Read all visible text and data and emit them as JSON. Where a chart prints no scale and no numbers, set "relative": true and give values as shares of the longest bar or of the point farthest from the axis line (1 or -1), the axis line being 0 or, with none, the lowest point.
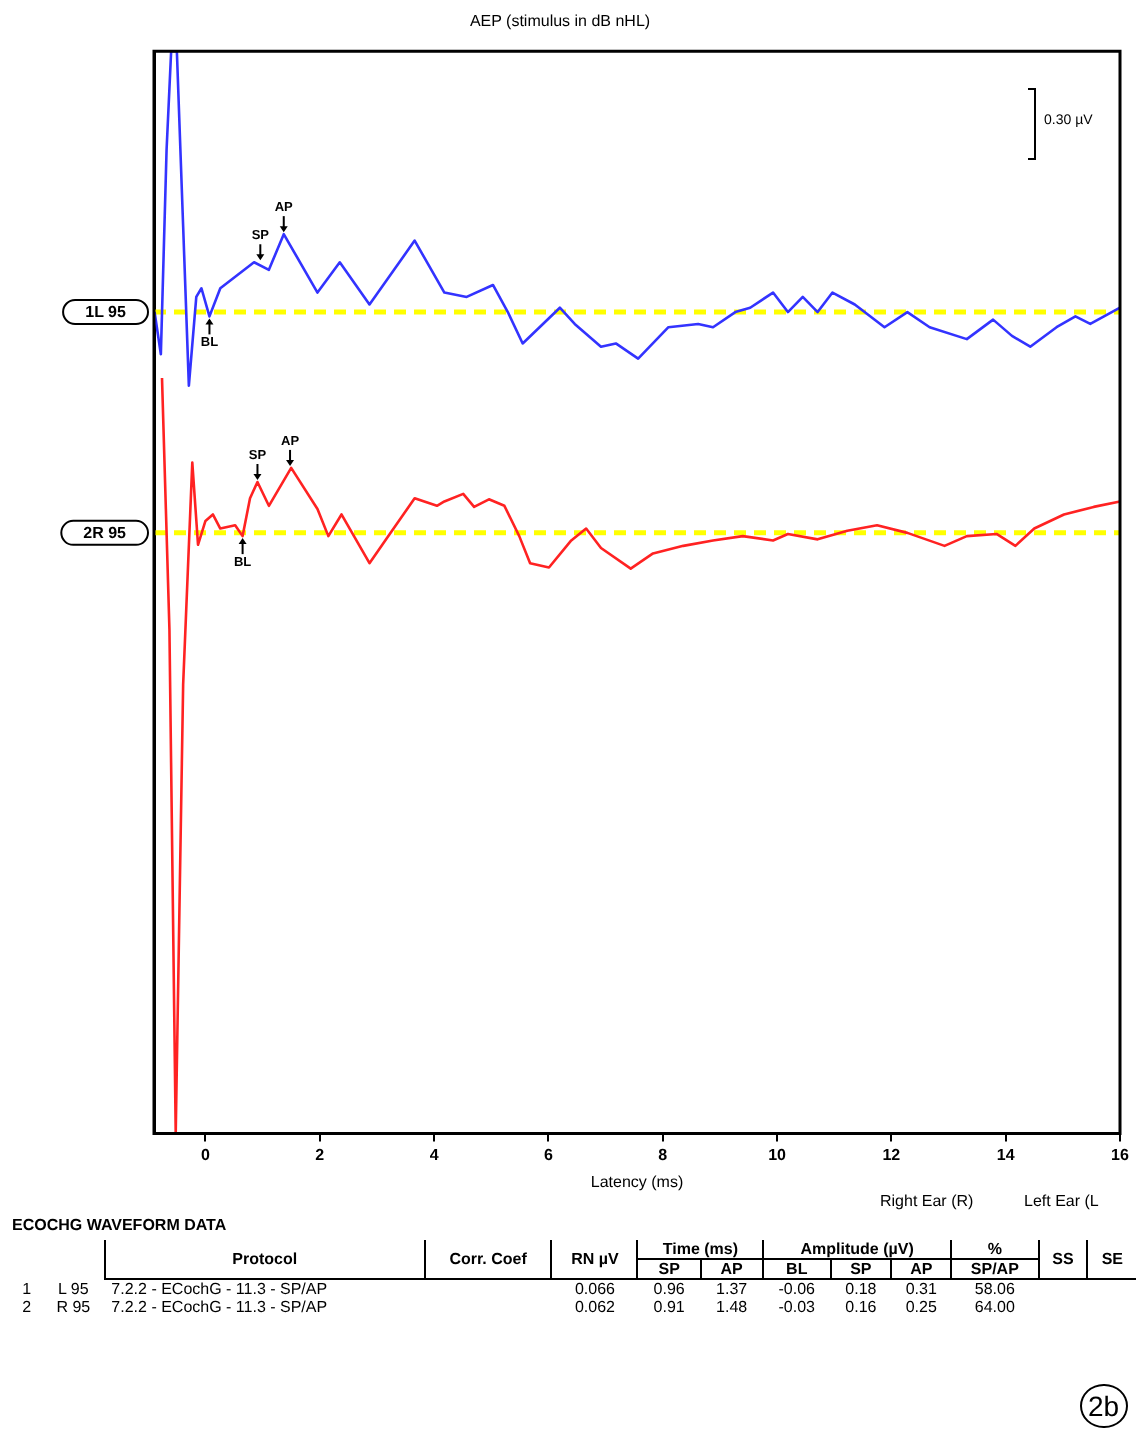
{
  "chart_data": {
    "type": "line",
    "title": "AEP (stimulus in dB nHL)",
    "xlabel": "Latency (ms)",
    "relative": true,
    "xlim": [
      -0.9,
      16
    ],
    "xticks": [
      0,
      2,
      4,
      6,
      8,
      10,
      12,
      14,
      16
    ],
    "grid": false,
    "legend": false,
    "marker": "none",
    "line_style": "solid",
    "series": [
      {
        "color": "#3333ff",
        "x": [
          -0.89,
          -0.78,
          -0.68,
          -0.6,
          -0.5,
          -0.39,
          -0.29,
          -0.16,
          -0.07,
          0.07,
          0.26,
          0.85,
          1.11,
          1.37,
          1.96,
          2.35,
          2.87,
          3.66,
          4.18,
          4.57,
          5.03,
          5.29,
          5.55,
          6.2,
          6.46,
          6.92,
          7.18,
          7.57,
          8.1,
          8.62,
          8.88,
          9.27,
          9.53,
          9.93,
          10.19,
          10.45,
          10.71,
          10.97,
          11.36,
          11.88,
          12.28,
          12.67,
          13.32,
          13.78,
          14.11,
          14.43,
          14.89,
          15.22,
          15.48,
          16.0
        ],
        "values": [
          0.759,
          0.72,
          0.909,
          1.0,
          1.0,
          0.838,
          0.691,
          0.773,
          0.781,
          0.755,
          0.781,
          0.805,
          0.798,
          0.831,
          0.777,
          0.805,
          0.766,
          0.825,
          0.777,
          0.773,
          0.784,
          0.759,
          0.73,
          0.763,
          0.748,
          0.727,
          0.73,
          0.716,
          0.745,
          0.748,
          0.745,
          0.759,
          0.763,
          0.777,
          0.759,
          0.773,
          0.759,
          0.777,
          0.766,
          0.745,
          0.759,
          0.745,
          0.734,
          0.752,
          0.737,
          0.727,
          0.745,
          0.755,
          0.748,
          0.763
        ]
      },
      {
        "color": "#ff2222",
        "x": [
          -0.76,
          -0.63,
          -0.52,
          -0.39,
          -0.23,
          -0.13,
          0.0,
          0.13,
          0.26,
          0.52,
          0.65,
          0.78,
          0.91,
          1.11,
          1.5,
          1.96,
          2.15,
          2.38,
          2.87,
          3.2,
          3.66,
          4.05,
          4.18,
          4.51,
          4.7,
          4.96,
          5.23,
          5.49,
          5.68,
          6.01,
          6.4,
          6.66,
          6.92,
          7.44,
          7.83,
          8.36,
          8.88,
          9.4,
          9.93,
          10.19,
          10.71,
          11.23,
          11.75,
          12.28,
          12.93,
          13.32,
          13.84,
          14.17,
          14.5,
          15.02,
          15.54,
          16.0
        ],
        "values": [
          0.698,
          0.466,
          0.0,
          0.415,
          0.62,
          0.544,
          0.566,
          0.572,
          0.559,
          0.562,
          0.552,
          0.587,
          0.602,
          0.58,
          0.615,
          0.577,
          0.552,
          0.572,
          0.527,
          0.552,
          0.587,
          0.58,
          0.584,
          0.591,
          0.579,
          0.586,
          0.58,
          0.552,
          0.527,
          0.523,
          0.548,
          0.559,
          0.541,
          0.522,
          0.536,
          0.543,
          0.548,
          0.552,
          0.548,
          0.554,
          0.549,
          0.557,
          0.562,
          0.555,
          0.543,
          0.552,
          0.554,
          0.543,
          0.559,
          0.572,
          0.579,
          0.584
        ]
      }
    ],
    "ref_lines": [
      {
        "axis": "y",
        "value": 0.759,
        "label": "1L 95",
        "color": "#ffff00",
        "line_style": "dashed"
      },
      {
        "axis": "y",
        "value": 0.555,
        "label": "2R 95",
        "color": "#ffff00",
        "line_style": "dashed"
      }
    ],
    "annotations": [
      "0.30 µV",
      {
        "text": "SP",
        "x": 0.96,
        "y": 0.805
      },
      {
        "text": "AP",
        "x": 1.37,
        "y": 0.831
      },
      {
        "text": "BL",
        "x": 0.07,
        "y": 0.755
      },
      {
        "text": "SP",
        "x": 0.91,
        "y": 0.602
      },
      {
        "text": "AP",
        "x": 1.48,
        "y": 0.615
      },
      {
        "text": "BL",
        "x": 0.65,
        "y": 0.552
      },
      "Right Ear (R)",
      "Left Ear (L",
      "ECOCHG WAVEFORM DATA",
      "Protocol",
      "Corr. Coef",
      "RN µV",
      "Time (ms)",
      "Amplitude (µV)",
      "%",
      "SS",
      "SE",
      "SP",
      "AP",
      "BL",
      "SP",
      "AP",
      "SP/AP",
      "1",
      "L 95",
      "7.2.2 - ECochG - 11.3 - SP/AP",
      "0.066",
      "0.96",
      "1.37",
      "-0.06",
      "0.18",
      "0.31",
      "58.06",
      "2",
      "R 95",
      "7.2.2 - ECochG - 11.3 - SP/AP",
      "0.062",
      "0.91",
      "1.48",
      "-0.03",
      "0.16",
      "0.25",
      "64.00",
      "2b"
    ]
  }
}
